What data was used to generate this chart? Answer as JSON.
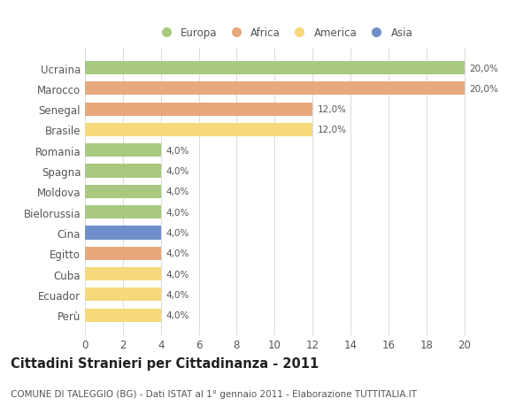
{
  "categories": [
    "Ucraina",
    "Marocco",
    "Senegal",
    "Brasile",
    "Romania",
    "Spagna",
    "Moldova",
    "Bielorussia",
    "Cina",
    "Egitto",
    "Cuba",
    "Ecuador",
    "Perù"
  ],
  "values": [
    20.0,
    20.0,
    12.0,
    12.0,
    4.0,
    4.0,
    4.0,
    4.0,
    4.0,
    4.0,
    4.0,
    4.0,
    4.0
  ],
  "colors": [
    "#a8c97f",
    "#e8a87c",
    "#e8a87c",
    "#f5d97a",
    "#a8c97f",
    "#a8c97f",
    "#a8c97f",
    "#a8c97f",
    "#6e8fc9",
    "#e8a87c",
    "#f5d97a",
    "#f5d97a",
    "#f5d97a"
  ],
  "legend": [
    {
      "label": "Europa",
      "color": "#a8c97f"
    },
    {
      "label": "Africa",
      "color": "#e8a87c"
    },
    {
      "label": "America",
      "color": "#f5d97a"
    },
    {
      "label": "Asia",
      "color": "#6e8fc9"
    }
  ],
  "xlim": [
    0,
    21
  ],
  "xticks": [
    0,
    2,
    4,
    6,
    8,
    10,
    12,
    14,
    16,
    18,
    20
  ],
  "title": "Cittadini Stranieri per Cittadinanza - 2011",
  "subtitle": "COMUNE DI TALEGGIO (BG) - Dati ISTAT al 1° gennaio 2011 - Elaborazione TUTTITALIA.IT",
  "bar_height": 0.65,
  "background_color": "#ffffff",
  "grid_color": "#dddddd",
  "label_color": "#555555",
  "value_label_fontsize": 7.5,
  "axis_label_fontsize": 8.5,
  "title_fontsize": 10.5,
  "subtitle_fontsize": 7.5
}
